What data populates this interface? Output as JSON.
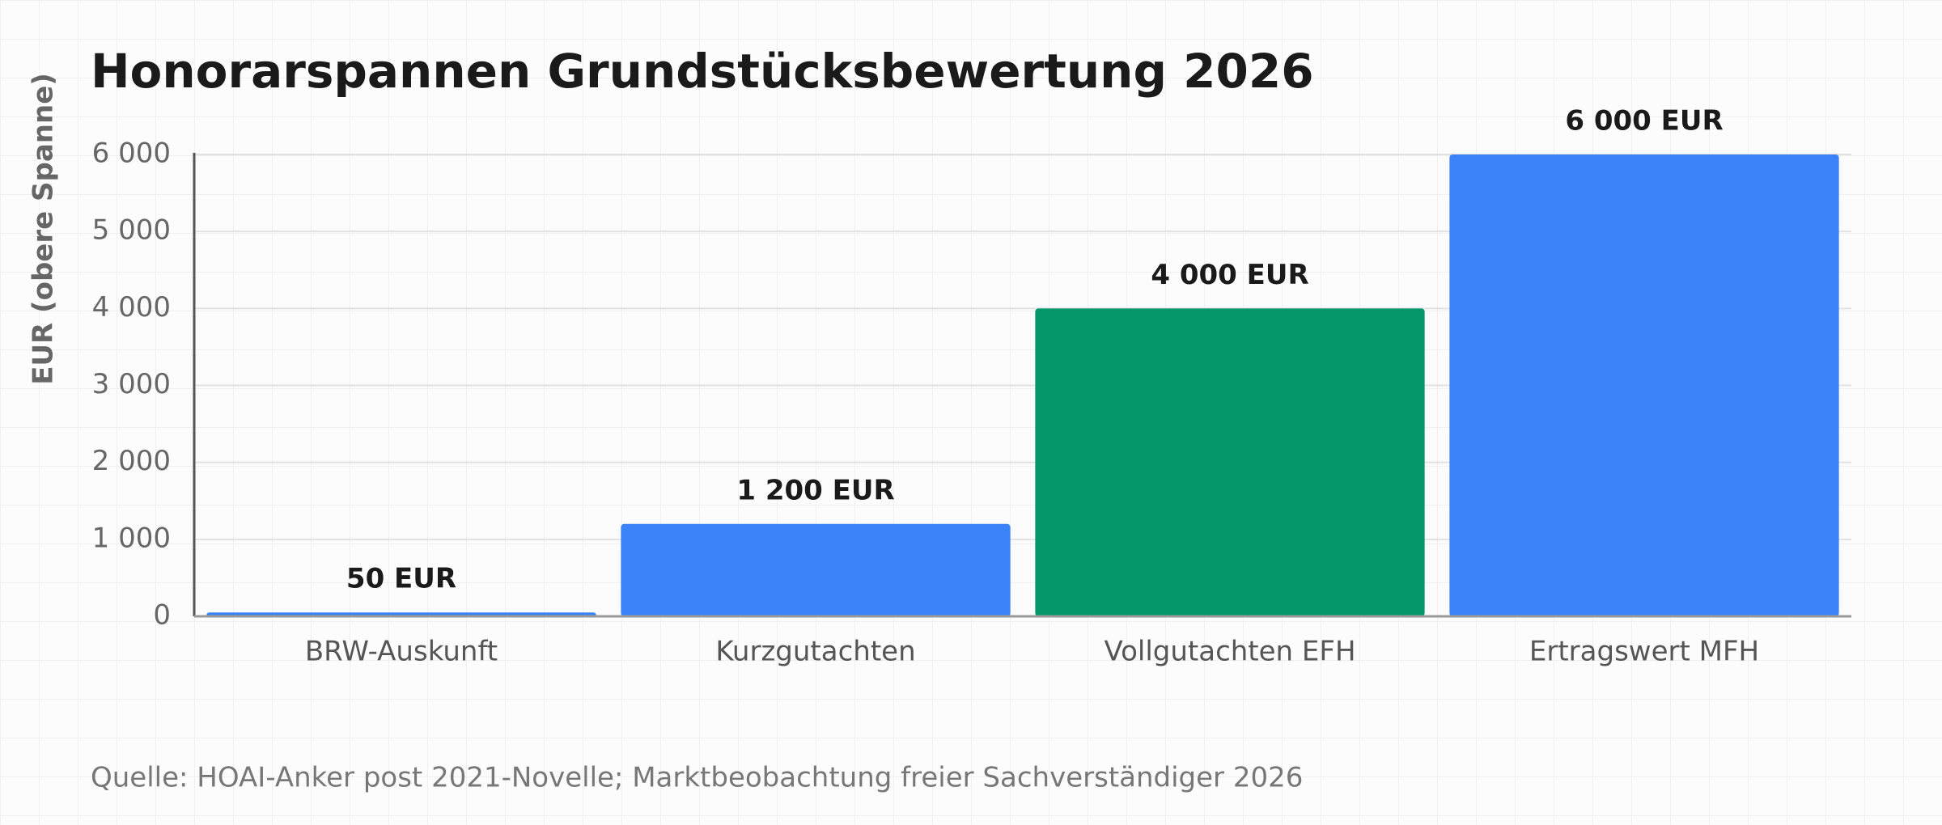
{
  "chart_data": {
    "type": "bar",
    "title": "Honorarspannen Grundstücksbewertung 2026",
    "y_label": "EUR (obere Spanne)",
    "source": "Quelle: HOAI-Anker post 2021-Novelle; Marktbeobachtung freier Sachverständiger 2026",
    "categories": [
      "BRW-Auskunft",
      "Kurzgutachten",
      "Vollgutachten EFH",
      "Ertragswert MFH"
    ],
    "values": [
      50,
      1200,
      4000,
      6000
    ],
    "value_labels": [
      "50 EUR",
      "1 200 EUR",
      "4 000 EUR",
      "6 000 EUR"
    ],
    "colors": [
      "#3b82f6",
      "#3b82f6",
      "#059669",
      "#3b82f6"
    ],
    "ylim": [
      0,
      6000
    ],
    "yticks": [
      0,
      {
        "value": 1000,
        "label": "1 000"
      },
      {
        "value": 2000,
        "label": "2 000"
      },
      {
        "value": 3000,
        "label": "3 000"
      },
      {
        "value": 4000,
        "label": "4 000"
      },
      {
        "value": 5000,
        "label": "5 000"
      },
      {
        "value": 6000,
        "label": "6 000"
      }
    ],
    "grid": true
  }
}
